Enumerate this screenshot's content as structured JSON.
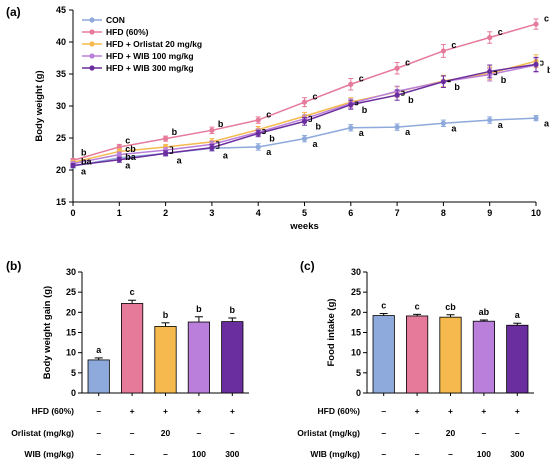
{
  "chart_data": [
    {
      "panel": "(a)",
      "type": "line",
      "xlabel": "weeks",
      "ylabel": "Body weight (g)",
      "x": [
        0,
        1,
        2,
        3,
        4,
        5,
        6,
        7,
        8,
        9,
        10
      ],
      "xlim": [
        0,
        10
      ],
      "ylim": [
        15,
        45
      ],
      "yticks": [
        15,
        20,
        25,
        30,
        35,
        40,
        45
      ],
      "grid": false,
      "legend": "top-left",
      "series": [
        {
          "name": "CON",
          "color": "#8EA9DB",
          "values": [
            20.6,
            21.9,
            22.6,
            23.4,
            23.6,
            24.9,
            26.6,
            26.7,
            27.3,
            27.8,
            28.1
          ],
          "err": [
            0.3,
            0.4,
            0.3,
            0.4,
            0.5,
            0.5,
            0.5,
            0.5,
            0.5,
            0.5,
            0.4
          ]
        },
        {
          "name": "HFD (60%)",
          "color": "#E57A9A",
          "values": [
            21.5,
            23.6,
            24.9,
            26.2,
            27.8,
            30.6,
            33.4,
            35.9,
            38.6,
            40.7,
            42.8
          ],
          "err": [
            0.3,
            0.4,
            0.4,
            0.5,
            0.5,
            0.7,
            0.9,
            0.9,
            1.0,
            0.9,
            0.8
          ]
        },
        {
          "name": "HFD + Orlistat 20 mg/kg",
          "color": "#F5B94E",
          "values": [
            21.2,
            22.9,
            23.6,
            24.4,
            26.3,
            28.4,
            30.6,
            32.2,
            33.9,
            35.1,
            37.0
          ],
          "err": [
            0.3,
            0.4,
            0.4,
            0.5,
            0.5,
            0.6,
            0.7,
            0.8,
            0.9,
            1.0,
            1.0
          ]
        },
        {
          "name": "HFD + WIB 100 mg/kg",
          "color": "#B97FDB",
          "values": [
            21.0,
            22.4,
            23.1,
            24.0,
            25.9,
            28.0,
            30.4,
            32.3,
            33.8,
            34.9,
            36.4
          ],
          "err": [
            0.3,
            0.4,
            0.4,
            0.5,
            0.5,
            0.6,
            0.7,
            0.8,
            0.9,
            1.0,
            1.1
          ]
        },
        {
          "name": "HFD + WIB 300 mg/kg",
          "color": "#6A2E9E",
          "values": [
            20.7,
            21.6,
            22.6,
            23.5,
            25.7,
            27.6,
            30.2,
            31.7,
            33.8,
            35.4,
            36.5
          ],
          "err": [
            0.3,
            0.4,
            0.4,
            0.5,
            0.5,
            0.6,
            0.7,
            0.8,
            0.9,
            1.0,
            1.1
          ]
        }
      ],
      "annotations": [
        {
          "x": 0,
          "labels": [
            "b",
            "ba",
            "a"
          ]
        },
        {
          "x": 1,
          "labels": [
            "c",
            "cb",
            "ba",
            "a"
          ]
        },
        {
          "x": 2,
          "labels": [
            "b",
            "a"
          ]
        },
        {
          "x": 3,
          "labels": [
            "b",
            "a"
          ]
        },
        {
          "x": 4,
          "labels": [
            "c",
            "b",
            "a"
          ]
        },
        {
          "x": 5,
          "labels": [
            "c",
            "b",
            "a"
          ]
        },
        {
          "x": 6,
          "labels": [
            "c",
            "b",
            "a"
          ]
        },
        {
          "x": 7,
          "labels": [
            "c",
            "b",
            "a"
          ]
        },
        {
          "x": 8,
          "labels": [
            "c",
            "b",
            "a"
          ]
        },
        {
          "x": 9,
          "labels": [
            "c",
            "b",
            "a"
          ]
        },
        {
          "x": 10,
          "labels": [
            "c",
            "b",
            "a"
          ]
        }
      ]
    },
    {
      "panel": "(b)",
      "type": "bar",
      "ylabel": "Body weight gain (g)",
      "ylim": [
        0,
        30
      ],
      "yticks": [
        0,
        5,
        10,
        15,
        20,
        25,
        30
      ],
      "categories": [
        "CON",
        "HFD (60%)",
        "HFD + Orlistat 20 mg/kg",
        "HFD + WIB 100 mg/kg",
        "HFD + WIB 300 mg/kg"
      ],
      "colors": [
        "#8EA9DB",
        "#E57A9A",
        "#F5B94E",
        "#B97FDB",
        "#6A2E9E"
      ],
      "values": [
        8.2,
        22.2,
        16.5,
        17.6,
        17.7
      ],
      "err": [
        0.5,
        0.8,
        0.9,
        1.3,
        0.9
      ],
      "labels": [
        "a",
        "c",
        "b",
        "b",
        "b"
      ]
    },
    {
      "panel": "(c)",
      "type": "bar",
      "ylabel": "Food intake (g)",
      "ylim": [
        0,
        30
      ],
      "yticks": [
        0,
        5,
        10,
        15,
        20,
        25,
        30
      ],
      "categories": [
        "CON",
        "HFD (60%)",
        "HFD + Orlistat 20 mg/kg",
        "HFD + WIB 100 mg/kg",
        "HFD + WIB 300 mg/kg"
      ],
      "colors": [
        "#8EA9DB",
        "#E57A9A",
        "#F5B94E",
        "#B97FDB",
        "#6A2E9E"
      ],
      "values": [
        19.2,
        19.1,
        18.8,
        17.8,
        16.8
      ],
      "err": [
        0.5,
        0.4,
        0.6,
        0.3,
        0.5
      ],
      "labels": [
        "c",
        "c",
        "cb",
        "ab",
        "a"
      ]
    }
  ],
  "treatment_table": {
    "rows": [
      {
        "label": "HFD (60%)",
        "values": [
          "–",
          "+",
          "+",
          "+",
          "+"
        ]
      },
      {
        "label": "Orlistat (mg/kg)",
        "values": [
          "–",
          "–",
          "20",
          "–",
          "–"
        ]
      },
      {
        "label": "WIB (mg/kg)",
        "values": [
          "–",
          "–",
          "–",
          "100",
          "300"
        ]
      }
    ]
  }
}
